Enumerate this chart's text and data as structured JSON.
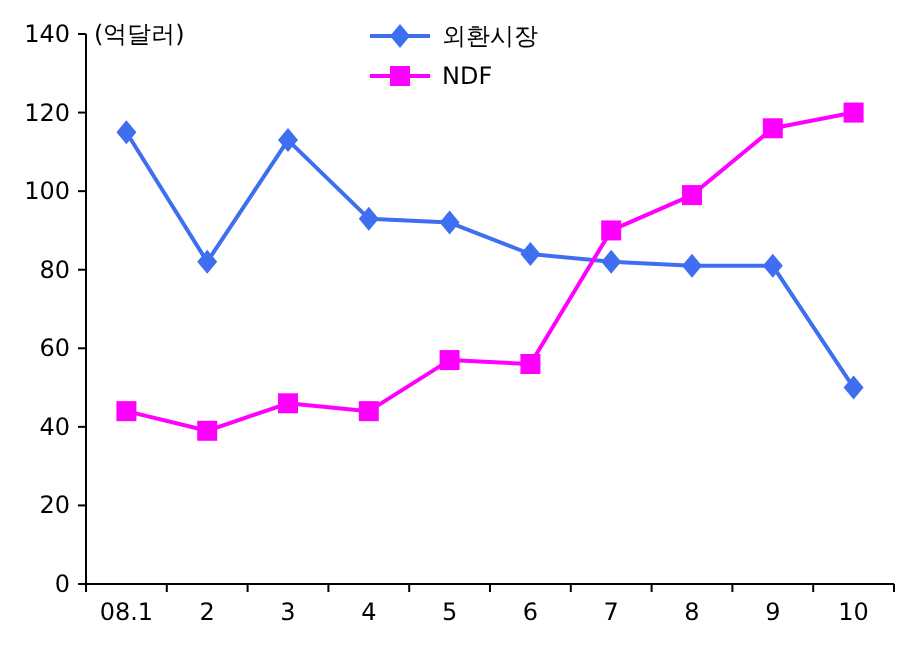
{
  "chart_data": {
    "type": "line",
    "ylabel": "(억달러)",
    "categories": [
      "08.1",
      "2",
      "3",
      "4",
      "5",
      "6",
      "7",
      "8",
      "9",
      "10"
    ],
    "series": [
      {
        "name": "외환시장",
        "color": "#3f6ff0",
        "marker": "diamond",
        "values": [
          115,
          82,
          113,
          93,
          92,
          84,
          82,
          81,
          81,
          50
        ]
      },
      {
        "name": "NDF",
        "color": "#ff00ff",
        "marker": "square",
        "values": [
          44,
          39,
          46,
          44,
          57,
          56,
          90,
          99,
          116,
          120
        ]
      }
    ],
    "ylim": [
      0,
      140
    ],
    "yticks": [
      0,
      20,
      40,
      60,
      80,
      100,
      120,
      140
    ],
    "legend": "top"
  }
}
